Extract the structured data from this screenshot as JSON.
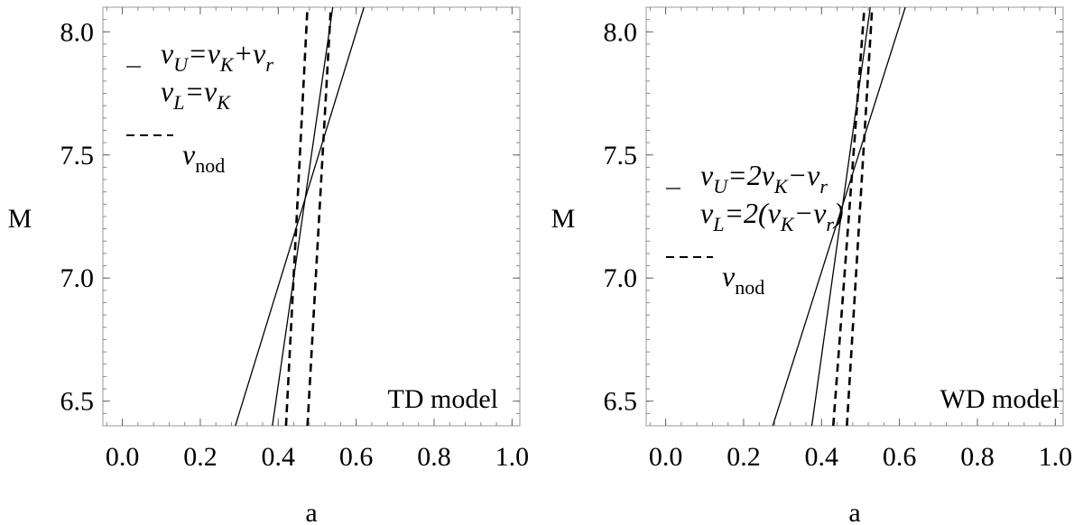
{
  "chart_data": [
    {
      "type": "line",
      "xlabel": "a",
      "ylabel": "M",
      "xlim": [
        -0.05,
        1.02
      ],
      "ylim": [
        6.4,
        8.1
      ],
      "xticks": [
        0.0,
        0.2,
        0.4,
        0.6,
        0.8,
        1.0
      ],
      "xtick_labels": [
        "0.0",
        "0.2",
        "0.4",
        "0.6",
        "0.8",
        "1.0"
      ],
      "yticks": [
        6.5,
        7.0,
        7.5,
        8.0
      ],
      "ytick_labels": [
        "6.5",
        "7.0",
        "7.5",
        "8.0"
      ],
      "annotation": "TD model",
      "legend_position": "top-left",
      "legend": [
        {
          "style": "solid",
          "lhs": "ν",
          "lhs_sub": "U",
          "rhs": "=ν",
          "rhs_sub": "K",
          "rest": "+ν",
          "rest_sub": "r",
          "tail": ""
        },
        {
          "style": "none",
          "lhs": "ν",
          "lhs_sub": "L",
          "rhs": "=ν",
          "rhs_sub": "K",
          "rest": "",
          "rest_sub": "",
          "tail": ""
        },
        {
          "style": "dashed",
          "lhs": "ν",
          "lhs_sub": "nod",
          "rhs": "",
          "rhs_sub": "",
          "rest": "",
          "rest_sub": "",
          "tail": ""
        }
      ],
      "series": [
        {
          "style": "solid",
          "x": [
            0.29,
            0.62
          ],
          "y": [
            6.4,
            8.1
          ]
        },
        {
          "style": "solid",
          "x": [
            0.385,
            0.54
          ],
          "y": [
            6.4,
            8.1
          ]
        },
        {
          "style": "dashed",
          "x": [
            0.42,
            0.475
          ],
          "y": [
            6.4,
            8.1
          ]
        },
        {
          "style": "dashed",
          "x": [
            0.475,
            0.535
          ],
          "y": [
            6.4,
            8.1
          ]
        }
      ]
    },
    {
      "type": "line",
      "xlabel": "a",
      "ylabel": "M",
      "xlim": [
        -0.05,
        1.02
      ],
      "ylim": [
        6.4,
        8.1
      ],
      "xticks": [
        0.0,
        0.2,
        0.4,
        0.6,
        0.8,
        1.0
      ],
      "xtick_labels": [
        "0.0",
        "0.2",
        "0.4",
        "0.6",
        "0.8",
        "1.0"
      ],
      "yticks": [
        6.5,
        7.0,
        7.5,
        8.0
      ],
      "ytick_labels": [
        "6.5",
        "7.0",
        "7.5",
        "8.0"
      ],
      "annotation": "WD model",
      "legend_position": "middle-left",
      "legend": [
        {
          "style": "solid",
          "lhs": "ν",
          "lhs_sub": "U",
          "rhs": "=2ν",
          "rhs_sub": "K",
          "rest": "−ν",
          "rest_sub": "r",
          "tail": ""
        },
        {
          "style": "none",
          "lhs": "ν",
          "lhs_sub": "L",
          "rhs": "=2(ν",
          "rhs_sub": "K",
          "rest": "−ν",
          "rest_sub": "r",
          "tail": ")"
        },
        {
          "style": "dashed",
          "lhs": "ν",
          "lhs_sub": "nod",
          "rhs": "",
          "rhs_sub": "",
          "rest": "",
          "rest_sub": "",
          "tail": ""
        }
      ],
      "series": [
        {
          "style": "solid",
          "x": [
            0.275,
            0.615
          ],
          "y": [
            6.4,
            8.1
          ]
        },
        {
          "style": "solid",
          "x": [
            0.375,
            0.525
          ],
          "y": [
            6.4,
            8.1
          ]
        },
        {
          "style": "dashed",
          "x": [
            0.43,
            0.51
          ],
          "y": [
            6.4,
            8.1
          ]
        },
        {
          "style": "dashed",
          "x": [
            0.465,
            0.53
          ],
          "y": [
            6.4,
            8.1
          ]
        }
      ]
    }
  ]
}
